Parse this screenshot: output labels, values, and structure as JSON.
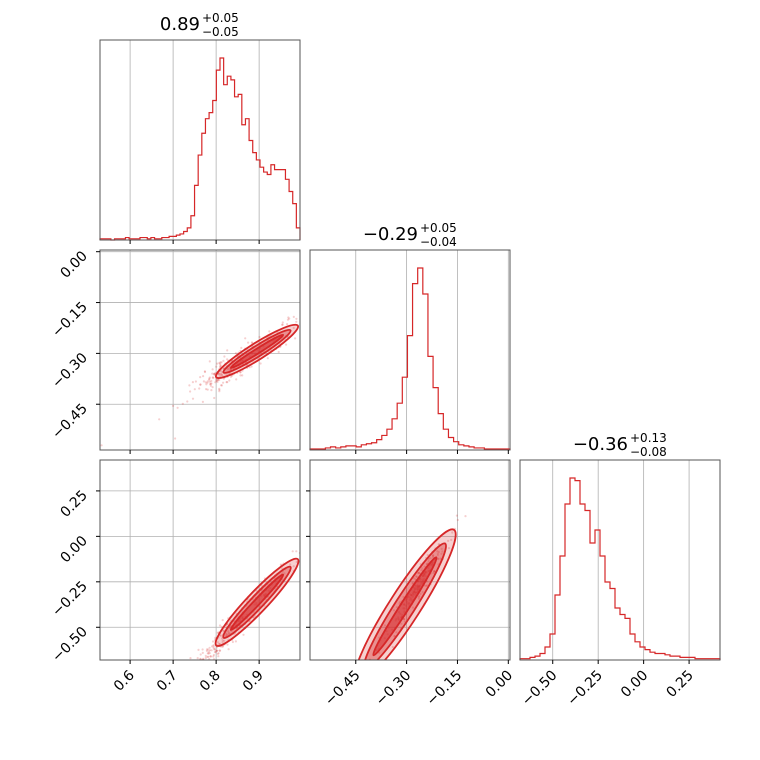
{
  "chart_data": {
    "type": "corner",
    "color": "#d62728",
    "parameters": [
      {
        "title": {
          "median": "0.89",
          "plus": "+0.05",
          "minus": "−0.05"
        },
        "range": [
          0.53,
          0.995
        ],
        "ticks": [
          0.6,
          0.7,
          0.8,
          0.9
        ],
        "tick_labels": [
          "0.6",
          "0.7",
          "0.8",
          "0.9"
        ],
        "hist_edges": [
          0.53,
          0.995
        ],
        "hist_counts": [
          1,
          1,
          1,
          0,
          1,
          1,
          1,
          2,
          1,
          1,
          1,
          2,
          2,
          1,
          2,
          1,
          1,
          2,
          2,
          3,
          3,
          4,
          5,
          7,
          10,
          20,
          45,
          70,
          88,
          100,
          105,
          115,
          140,
          150,
          128,
          135,
          132,
          118,
          120,
          95,
          100,
          82,
          72,
          66,
          60,
          56,
          54,
          62,
          58,
          58,
          58,
          50,
          40,
          30,
          10
        ]
      },
      {
        "title": {
          "median": "−0.29",
          "plus": "+0.05",
          "minus": "−0.04"
        },
        "range": [
          -0.585,
          0.005
        ],
        "ticks": [
          -0.45,
          -0.3,
          -0.15,
          0.0
        ],
        "tick_labels": [
          "−0.45",
          "−0.30",
          "−0.15",
          "0.00"
        ],
        "ticks_y": [
          0.0,
          -0.15,
          -0.3,
          -0.45
        ],
        "tick_labels_y": [
          "0.00",
          "−0.15",
          "−0.30",
          "−0.45"
        ],
        "hist_counts": [
          1,
          1,
          1,
          2,
          3,
          2,
          3,
          4,
          4,
          3,
          5,
          6,
          7,
          10,
          14,
          20,
          30,
          45,
          70,
          110,
          160,
          175,
          150,
          90,
          60,
          35,
          20,
          12,
          8,
          5,
          4,
          3,
          2,
          2,
          1,
          1,
          1,
          1,
          1
        ]
      },
      {
        "title": {
          "median": "−0.36",
          "plus": "+0.13",
          "minus": "−0.08"
        },
        "range": [
          -0.68,
          0.42
        ],
        "ticks": [
          -0.5,
          -0.25,
          0.0,
          0.25
        ],
        "tick_labels": [
          "−0.50",
          "−0.25",
          "0.00",
          "0.25"
        ],
        "ticks_y": [
          0.25,
          0.0,
          -0.25,
          -0.5
        ],
        "tick_labels_y": [
          "0.25",
          "0.00",
          "−0.25",
          "−0.50"
        ],
        "hist_counts": [
          1,
          1,
          2,
          3,
          5,
          10,
          20,
          50,
          80,
          120,
          140,
          138,
          120,
          115,
          90,
          100,
          80,
          60,
          55,
          40,
          35,
          32,
          20,
          14,
          10,
          8,
          6,
          5,
          5,
          4,
          3,
          3,
          2,
          2,
          2,
          1,
          1,
          1,
          1,
          1
        ]
      }
    ],
    "relations": [
      {
        "pair": [
          0,
          1
        ],
        "slope": 0.8,
        "intercept": -1.01,
        "scatter": 0.025
      },
      {
        "pair": [
          0,
          2
        ],
        "slope": 2.5,
        "intercept": -2.6,
        "scatter": 0.04
      },
      {
        "pair": [
          1,
          2
        ],
        "slope": 2.9,
        "intercept": 0.5,
        "scatter": 0.04
      }
    ]
  }
}
